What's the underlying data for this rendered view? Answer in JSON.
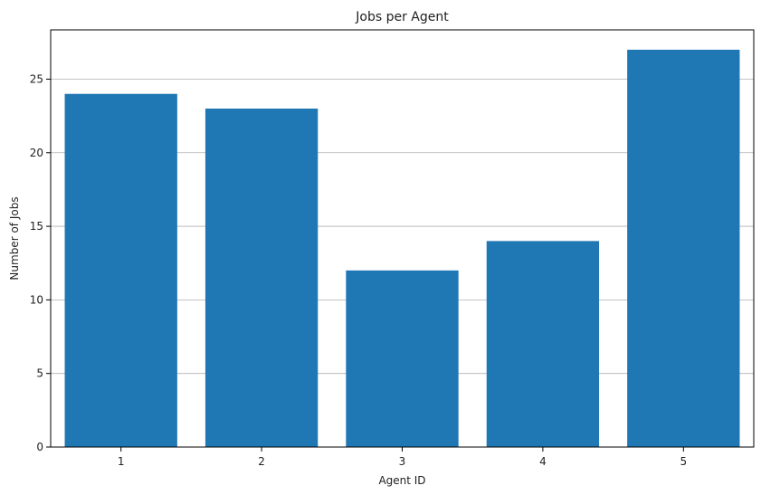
{
  "chart_data": {
    "type": "bar",
    "title": "Jobs per Agent",
    "xlabel": "Agent ID",
    "ylabel": "Number of Jobs",
    "categories": [
      "1",
      "2",
      "3",
      "4",
      "5"
    ],
    "values": [
      24,
      23,
      12,
      14,
      27
    ],
    "ylim": [
      0,
      28.35
    ],
    "yticks": [
      0,
      5,
      10,
      15,
      20,
      25
    ],
    "grid": "y-axis",
    "bar_color": "#1f77b4",
    "grid_color": "#b0b0b0"
  }
}
